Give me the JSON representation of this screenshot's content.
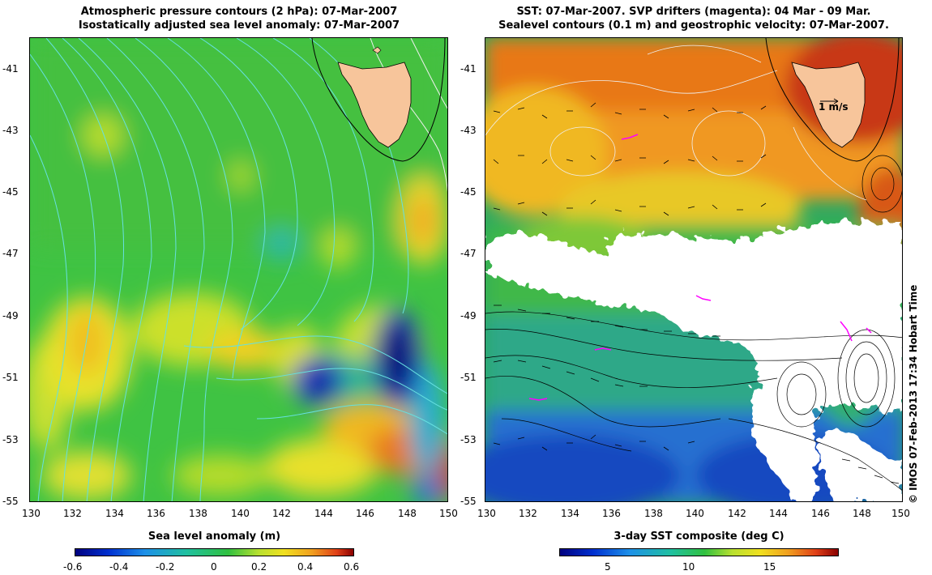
{
  "left_panel": {
    "title_line1": "Atmospheric pressure contours (2 hPa): 07-Mar-2007",
    "title_line2": "Isostatically adjusted sea level anomaly: 07-Mar-2007",
    "colorbar_label": "Sea level anomaly (m)",
    "colorbar_ticks": [
      "-0.6",
      "-0.4",
      "-0.2",
      "0",
      "0.2",
      "0.4",
      "0.6"
    ],
    "colorbar_range": [
      -0.6,
      0.6
    ]
  },
  "right_panel": {
    "title_line1": "SST: 07-Mar-2007. SVP drifters (magenta): 04 Mar - 09 Mar.",
    "title_line2": "Sealevel contours (0.1 m) and geostrophic velocity: 07-Mar-2007.",
    "colorbar_label": "3-day SST composite (deg C)",
    "colorbar_ticks": [
      "5",
      "10",
      "15"
    ],
    "colorbar_range": [
      2,
      19
    ],
    "velocity_scale_label": "1 m/s"
  },
  "map_axes": {
    "lon_ticks": [
      "130",
      "132",
      "134",
      "136",
      "138",
      "140",
      "142",
      "144",
      "146",
      "148",
      "150"
    ],
    "lat_ticks": [
      "-41",
      "-43",
      "-45",
      "-47",
      "-49",
      "-51",
      "-53",
      "-55"
    ],
    "lon_range": [
      130,
      150
    ],
    "lat_range": [
      -55,
      -40
    ]
  },
  "credit": "© IMOS 07-Feb-2013 17:34 Hobart Time",
  "colors": {
    "land": "#f7c59b",
    "cloud_mask": "#ffffff",
    "drifter": "#ff00ff",
    "pressure_contour": "#66e0e0"
  }
}
